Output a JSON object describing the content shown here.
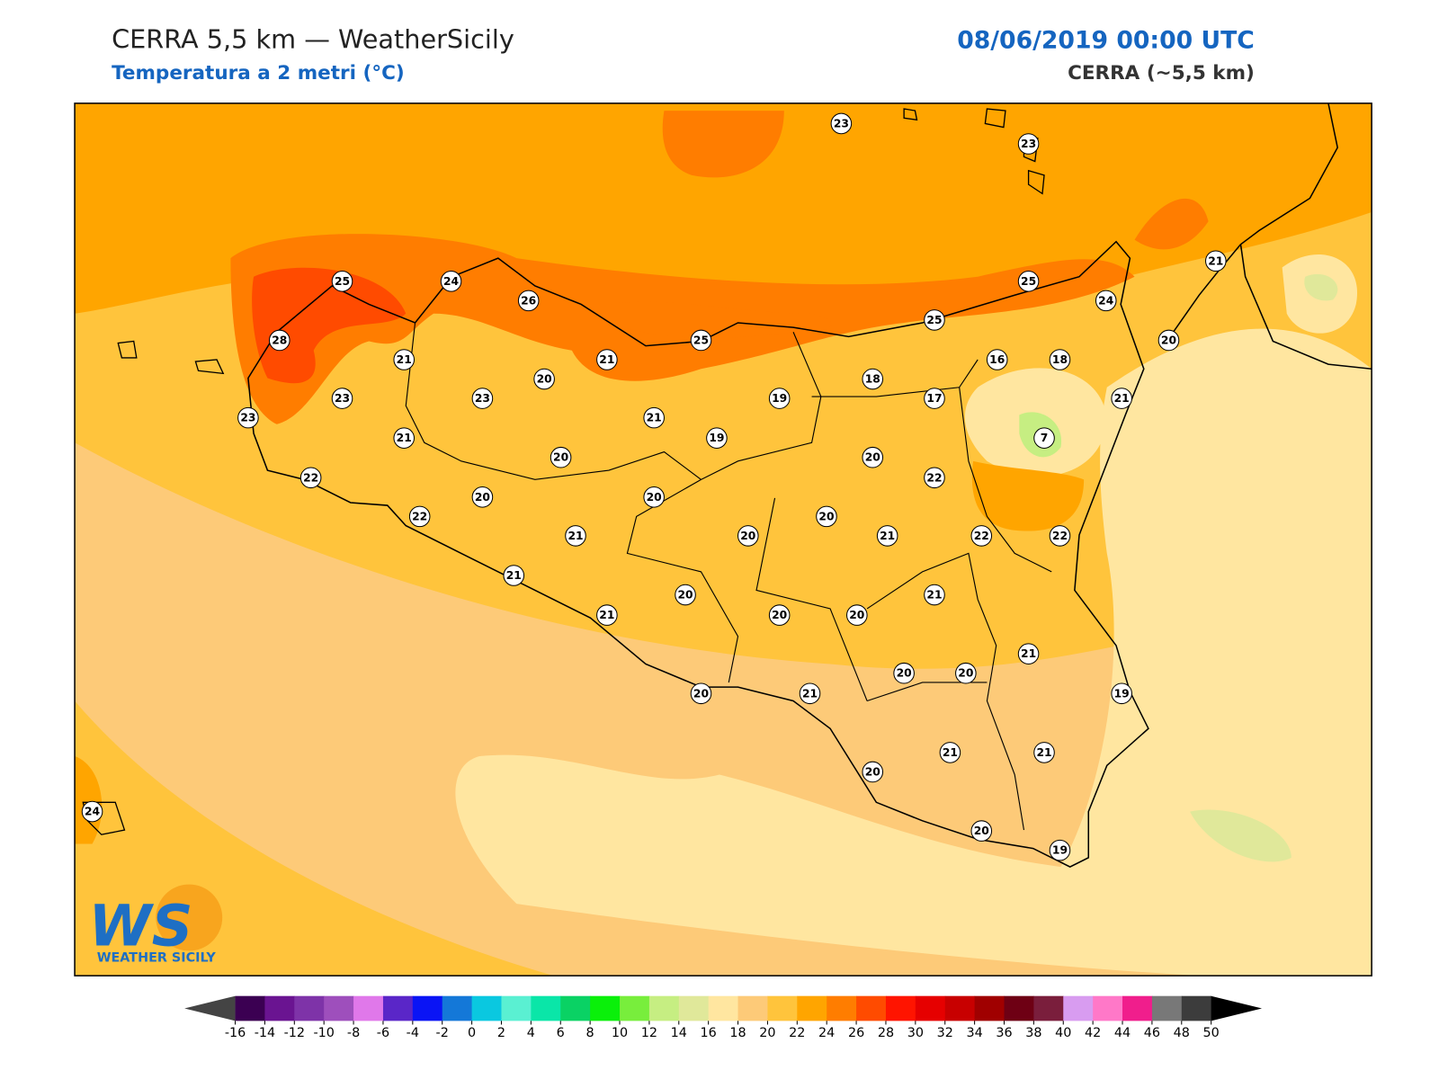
{
  "header": {
    "title": "CERRA 5,5 km — WeatherSicily",
    "subtitle": "Temperatura a 2 metri (°C)",
    "date": "08/06/2019 00:00 UTC",
    "model": "CERRA (~5,5 km)"
  },
  "logo": {
    "mark": "WS",
    "name": "WEATHER SICILY"
  },
  "stations": [
    23,
    23,
    25,
    24,
    26,
    25,
    24,
    21,
    25,
    28,
    25,
    21,
    21,
    20,
    16,
    18,
    20,
    18,
    23,
    23,
    19,
    17,
    21,
    23,
    21,
    21,
    19,
    7,
    20,
    20,
    22,
    22,
    20,
    20,
    22,
    20,
    21,
    20,
    21,
    22,
    22,
    21,
    21,
    20,
    21,
    20,
    20,
    21,
    20,
    20,
    20,
    21,
    19,
    21,
    21,
    20,
    20,
    19,
    24
  ],
  "colorbar": {
    "ticks": [
      -16,
      -14,
      -12,
      -10,
      -8,
      -6,
      -4,
      -2,
      0,
      2,
      4,
      6,
      8,
      10,
      12,
      14,
      16,
      18,
      20,
      22,
      24,
      26,
      28,
      30,
      32,
      34,
      36,
      38,
      40,
      42,
      44,
      46,
      48,
      50
    ],
    "colors": [
      "#3b0052",
      "#6a1491",
      "#7e33a8",
      "#9e4fbc",
      "#e078ea",
      "#5a26c8",
      "#0a14f5",
      "#1478d8",
      "#0ac8e0",
      "#5af0d2",
      "#0ae6a8",
      "#0ad264",
      "#0af00a",
      "#78ee3c",
      "#c6ee82",
      "#e0e89a",
      "#ffe6a0",
      "#fdca78",
      "#ffc43c",
      "#ffa500",
      "#ff7d00",
      "#ff4b00",
      "#ff1400",
      "#e60000",
      "#c80000",
      "#a00000",
      "#6e0014",
      "#7a1e3c",
      "#d89cf0",
      "#ff78c8",
      "#f01e8c",
      "#787878",
      "#3c3c3c"
    ],
    "under": "#444444",
    "over": "#000000"
  }
}
